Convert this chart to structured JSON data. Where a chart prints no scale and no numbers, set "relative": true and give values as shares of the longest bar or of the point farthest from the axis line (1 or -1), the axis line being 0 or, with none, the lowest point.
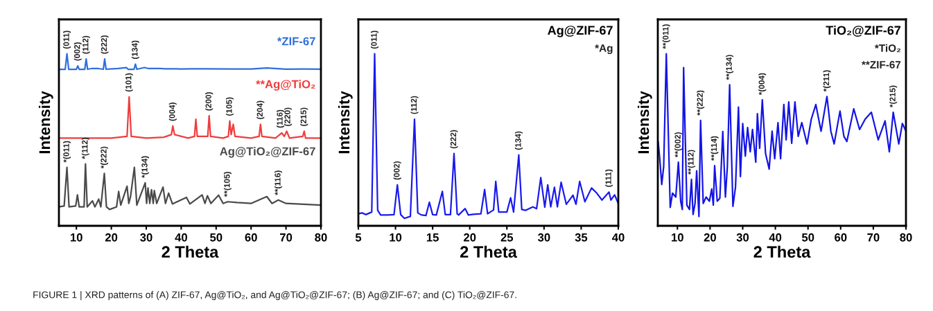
{
  "chart_data": [
    {
      "type": "line",
      "relative": true,
      "xlabel": "2 Theta",
      "ylabel": "Intensity",
      "xlim": [
        5,
        80
      ],
      "xticks": [
        10,
        20,
        30,
        40,
        50,
        60,
        70,
        80
      ],
      "tick_labels": "x",
      "series": [
        {
          "name": "*ZIF-67",
          "color": "#2f6fdc",
          "x": [
            5,
            6.8,
            7.3,
            7.8,
            10,
            10.4,
            10.8,
            12.4,
            12.8,
            13.2,
            14.5,
            16,
            17.7,
            18.1,
            18.5,
            19.5,
            22,
            24.3,
            24.8,
            26.5,
            26.9,
            27.3,
            29.5,
            30.5,
            31.5,
            34,
            35.5,
            40,
            43,
            47,
            55,
            60,
            64.5,
            70,
            75,
            80
          ],
          "values": [
            0.91,
            0.91,
            1.0,
            0.91,
            0.91,
            0.93,
            0.91,
            0.91,
            0.97,
            0.91,
            0.915,
            0.915,
            0.91,
            0.97,
            0.91,
            0.912,
            0.915,
            0.92,
            0.91,
            0.91,
            0.94,
            0.91,
            0.92,
            0.915,
            0.915,
            0.915,
            0.913,
            0.912,
            0.913,
            0.913,
            0.912,
            0.912,
            0.918,
            0.911,
            0.912,
            0.911
          ]
        },
        {
          "name": "**Ag@TiO₂",
          "color": "#f03c3c",
          "x": [
            5,
            10,
            15,
            20,
            24.5,
            25.1,
            25.7,
            30,
            35,
            37.2,
            37.6,
            38.1,
            42,
            43.8,
            44.2,
            44.6,
            47.6,
            48,
            48.4,
            52,
            53.5,
            53.9,
            54.3,
            54.9,
            55.4,
            60,
            62.3,
            62.7,
            63.1,
            67,
            68.8,
            69.5,
            70.2,
            71,
            74.8,
            75.2,
            75.6,
            80
          ],
          "values": [
            0.51,
            0.51,
            0.51,
            0.51,
            0.52,
            0.75,
            0.52,
            0.51,
            0.515,
            0.53,
            0.58,
            0.53,
            0.51,
            0.52,
            0.62,
            0.52,
            0.52,
            0.64,
            0.52,
            0.51,
            0.52,
            0.61,
            0.53,
            0.59,
            0.52,
            0.51,
            0.52,
            0.59,
            0.52,
            0.51,
            0.54,
            0.52,
            0.55,
            0.51,
            0.52,
            0.55,
            0.51,
            0.51
          ]
        },
        {
          "name": "Ag@TiO₂@ZIF-67",
          "color": "#4a4a4a",
          "x": [
            5,
            6.5,
            7.3,
            7.9,
            9.8,
            10.3,
            10.8,
            12.2,
            12.6,
            13.1,
            14.6,
            15.3,
            16.4,
            17,
            18,
            18.6,
            19.5,
            21.5,
            22.1,
            22.7,
            24.5,
            25,
            25.5,
            26.6,
            27.3,
            29.7,
            30.1,
            30.5,
            31,
            31.5,
            32,
            32.3,
            33,
            34.8,
            35.5,
            36.4,
            37.5,
            41.5,
            42.5,
            46,
            46.8,
            47.5,
            48.5,
            50.7,
            52,
            53.3,
            56,
            60,
            64.5,
            66,
            67.8,
            70,
            75,
            80
          ],
          "values": [
            0.11,
            0.115,
            0.34,
            0.11,
            0.115,
            0.18,
            0.11,
            0.11,
            0.36,
            0.11,
            0.145,
            0.11,
            0.155,
            0.11,
            0.305,
            0.11,
            0.095,
            0.11,
            0.2,
            0.12,
            0.23,
            0.13,
            0.17,
            0.34,
            0.12,
            0.25,
            0.13,
            0.22,
            0.13,
            0.21,
            0.13,
            0.205,
            0.13,
            0.225,
            0.13,
            0.19,
            0.127,
            0.165,
            0.127,
            0.18,
            0.13,
            0.175,
            0.13,
            0.178,
            0.13,
            0.14,
            0.135,
            0.13,
            0.17,
            0.13,
            0.15,
            0.13,
            0.125,
            0.12
          ]
        }
      ],
      "annotations": [
        {
          "text": "(011)",
          "x": 7.3,
          "y": 1.0
        },
        {
          "text": "(002)",
          "x": 10.4,
          "y": 0.93
        },
        {
          "text": "(112)",
          "x": 12.8,
          "y": 0.97
        },
        {
          "text": "(222)",
          "x": 18.1,
          "y": 0.97
        },
        {
          "text": "(134)",
          "x": 26.9,
          "y": 0.94
        },
        {
          "text": "(101)",
          "x": 25.1,
          "y": 0.75
        },
        {
          "text": "(004)",
          "x": 37.6,
          "y": 0.58
        },
        {
          "text": "(200)",
          "x": 48,
          "y": 0.64
        },
        {
          "text": "(105)",
          "x": 53.9,
          "y": 0.61
        },
        {
          "text": "(204)",
          "x": 62.7,
          "y": 0.59
        },
        {
          "text": "(116)",
          "x": 68.8,
          "y": 0.54
        },
        {
          "text": "(220)",
          "x": 70.2,
          "y": 0.55
        },
        {
          "text": "(215)",
          "x": 75.2,
          "y": 0.55
        },
        {
          "text": "*(011)",
          "x": 7.3,
          "y": 0.34
        },
        {
          "text": "*(112)",
          "x": 12.6,
          "y": 0.36
        },
        {
          "text": "*(222)",
          "x": 18,
          "y": 0.305
        },
        {
          "text": "*(134)",
          "x": 29.7,
          "y": 0.25
        },
        {
          "text": "**(105)",
          "x": 53.3,
          "y": 0.14
        },
        {
          "text": "**(116)",
          "x": 67.8,
          "y": 0.15
        },
        "FIGURE 1 | XRD patterns of (A) ZIF-67, Ag@TiO₂, and Ag@TiO₂@ZIF-67; (B) Ag@ZIF-67; and (C) TiO₂@ZIF-67."
      ]
    },
    {
      "type": "line",
      "relative": true,
      "title": "Ag@ZIF-67",
      "xlabel": "2 Theta",
      "ylabel": "Intensity",
      "xlim": [
        5,
        40
      ],
      "xticks": [
        5,
        10,
        15,
        20,
        25,
        30,
        35,
        40
      ],
      "tick_labels": "x",
      "series": [
        {
          "color": "#1a1aee",
          "x": [
            5,
            5.5,
            6,
            6.8,
            7.19,
            7.6,
            8,
            9,
            9.8,
            10.25,
            10.7,
            11.2,
            12,
            12.56,
            13,
            13.5,
            14.1,
            14.56,
            15,
            15.5,
            16.31,
            16.7,
            17.4,
            17.88,
            18.3,
            18.5,
            19.38,
            19.8,
            20.5,
            21.5,
            22.0,
            22.4,
            23.2,
            23.5,
            23.9,
            25,
            25.5,
            25.9,
            26.6,
            27,
            27.5,
            28.5,
            29,
            29.56,
            30.1,
            30.5,
            30.9,
            31.4,
            31.8,
            32.3,
            33,
            33.9,
            34.3,
            34.8,
            35.5,
            36.4,
            37.1,
            37.8,
            38.75,
            39,
            39.5,
            40
          ],
          "values": [
            0.07,
            0.075,
            0.065,
            0.08,
            1.0,
            0.09,
            0.063,
            0.063,
            0.065,
            0.238,
            0.065,
            0.043,
            0.055,
            0.62,
            0.075,
            0.063,
            0.06,
            0.137,
            0.065,
            0.063,
            0.2,
            0.065,
            0.065,
            0.42,
            0.07,
            0.063,
            0.1,
            0.063,
            0.067,
            0.07,
            0.211,
            0.07,
            0.092,
            0.258,
            0.08,
            0.08,
            0.163,
            0.08,
            0.412,
            0.095,
            0.09,
            0.11,
            0.1,
            0.28,
            0.108,
            0.238,
            0.11,
            0.224,
            0.11,
            0.253,
            0.125,
            0.178,
            0.125,
            0.258,
            0.14,
            0.22,
            0.19,
            0.15,
            0.196,
            0.15,
            0.18,
            0.13
          ]
        }
      ],
      "annotations": [
        {
          "text": "(011)",
          "x": 7.19,
          "y": 1.0
        },
        {
          "text": "(002)",
          "x": 10.25,
          "y": 0.238
        },
        {
          "text": "(112)",
          "x": 12.56,
          "y": 0.62
        },
        {
          "text": "(222)",
          "x": 17.88,
          "y": 0.42
        },
        {
          "text": "(134)",
          "x": 26.6,
          "y": 0.412
        },
        {
          "text": "(111)",
          "x": 38.75,
          "y": 0.196
        },
        "*Ag"
      ]
    },
    {
      "type": "line",
      "relative": true,
      "title": "TiO₂@ZIF-67",
      "xlabel": "2 Theta",
      "ylabel": "Intensity",
      "xlim": [
        4,
        80
      ],
      "xticks": [
        10,
        20,
        30,
        40,
        50,
        60,
        70,
        80
      ],
      "tick_labels": "x",
      "series": [
        {
          "color": "#1414e6",
          "x": [
            4.1,
            4.6,
            5.2,
            5.8,
            6.6,
            7.8,
            8.5,
            9.5,
            10.3,
            11,
            11.5,
            11.9,
            12.9,
            13.7,
            14.3,
            14.8,
            15.4,
            15.9,
            16.6,
            17.1,
            17.9,
            18.8,
            19.8,
            20.5,
            21.0,
            21.4,
            22.2,
            23,
            23.9,
            24.7,
            25.3,
            26.0,
            27,
            27.8,
            28.7,
            29.3,
            30,
            30.8,
            31.5,
            32.3,
            33,
            34,
            34.5,
            35.2,
            36.0,
            37,
            38.1,
            39,
            39.8,
            40.8,
            41.6,
            42.6,
            43.3,
            44.1,
            45,
            46,
            47,
            48.1,
            49.7,
            51,
            52.4,
            54,
            55.8,
            57,
            58,
            59.8,
            61,
            61.9,
            64,
            65.8,
            67.5,
            69.4,
            71.5,
            73.6,
            74.9,
            76.1,
            77.8,
            78.9,
            80
          ],
          "values": [
            0.49,
            0.39,
            0.24,
            0.345,
            1.0,
            0.107,
            0.19,
            0.167,
            0.37,
            0.143,
            0.095,
            0.92,
            0.12,
            0.095,
            0.27,
            0.066,
            0.13,
            0.32,
            0.054,
            0.613,
            0.13,
            0.167,
            0.143,
            0.214,
            0.12,
            0.35,
            0.143,
            0.16,
            0.548,
            0.167,
            0.345,
            0.82,
            0.113,
            0.226,
            0.69,
            0.286,
            0.595,
            0.405,
            0.571,
            0.43,
            0.56,
            0.37,
            0.652,
            0.45,
            0.732,
            0.42,
            0.33,
            0.55,
            0.39,
            0.6,
            0.39,
            0.705,
            0.5,
            0.72,
            0.48,
            0.72,
            0.52,
            0.6,
            0.476,
            0.62,
            0.705,
            0.55,
            0.752,
            0.55,
            0.476,
            0.667,
            0.52,
            0.49,
            0.68,
            0.56,
            0.62,
            0.66,
            0.5,
            0.61,
            0.43,
            0.66,
            0.476,
            0.595,
            0.55
          ]
        }
      ],
      "annotations": [
        {
          "text": "**(011)",
          "x": 6.6,
          "y": 1.0
        },
        {
          "text": "**(002)",
          "x": 10.3,
          "y": 0.37
        },
        {
          "text": "**(112)",
          "x": 14.3,
          "y": 0.27
        },
        {
          "text": "**(222)",
          "x": 17.1,
          "y": 0.613
        },
        {
          "text": "**(114)",
          "x": 21.4,
          "y": 0.35
        },
        {
          "text": "**(134)",
          "x": 26.0,
          "y": 0.82
        },
        {
          "text": "*(004)",
          "x": 36.0,
          "y": 0.732
        },
        {
          "text": "*(211)",
          "x": 55.8,
          "y": 0.752
        },
        {
          "text": "*(215)",
          "x": 76.1,
          "y": 0.66
        },
        "*TiO₂",
        "**ZIF-67"
      ]
    }
  ]
}
